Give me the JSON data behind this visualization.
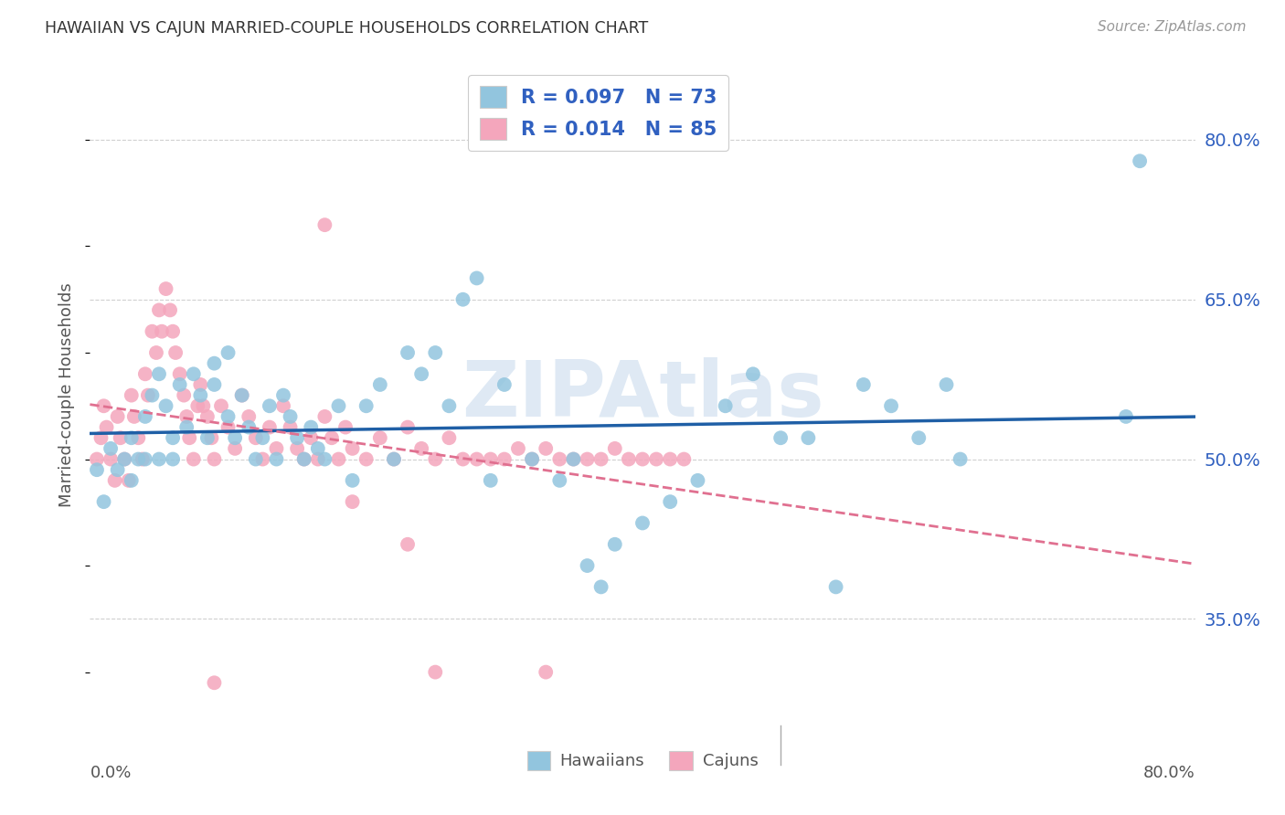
{
  "title": "HAWAIIAN VS CAJUN MARRIED-COUPLE HOUSEHOLDS CORRELATION CHART",
  "source": "Source: ZipAtlas.com",
  "ylabel": "Married-couple Households",
  "ytick_labels": [
    "80.0%",
    "65.0%",
    "50.0%",
    "35.0%"
  ],
  "ytick_values": [
    0.8,
    0.65,
    0.5,
    0.35
  ],
  "xlim": [
    0.0,
    0.8
  ],
  "ylim": [
    0.25,
    0.87
  ],
  "hawaiian_color": "#92c5de",
  "cajun_color": "#f4a6bc",
  "hawaiian_line_color": "#1f5fa6",
  "cajun_line_color": "#e07090",
  "legend_text_color": "#3060c0",
  "R_hawaiian": "0.097",
  "N_hawaiian": "73",
  "R_cajun": "0.014",
  "N_cajun": "85",
  "watermark": "ZIPAtlas",
  "background_color": "#ffffff",
  "grid_color": "#d0d0d0",
  "hawaiian_x": [
    0.005,
    0.01,
    0.015,
    0.02,
    0.025,
    0.03,
    0.03,
    0.035,
    0.04,
    0.04,
    0.045,
    0.05,
    0.05,
    0.055,
    0.06,
    0.06,
    0.065,
    0.07,
    0.075,
    0.08,
    0.085,
    0.09,
    0.09,
    0.1,
    0.1,
    0.105,
    0.11,
    0.115,
    0.12,
    0.125,
    0.13,
    0.135,
    0.14,
    0.145,
    0.15,
    0.155,
    0.16,
    0.165,
    0.17,
    0.18,
    0.19,
    0.2,
    0.21,
    0.22,
    0.23,
    0.24,
    0.25,
    0.26,
    0.27,
    0.28,
    0.29,
    0.3,
    0.32,
    0.34,
    0.35,
    0.36,
    0.37,
    0.38,
    0.4,
    0.42,
    0.44,
    0.46,
    0.48,
    0.5,
    0.52,
    0.54,
    0.56,
    0.58,
    0.6,
    0.62,
    0.63,
    0.75,
    0.76
  ],
  "hawaiian_y": [
    0.49,
    0.46,
    0.51,
    0.49,
    0.5,
    0.52,
    0.48,
    0.5,
    0.54,
    0.5,
    0.56,
    0.58,
    0.5,
    0.55,
    0.52,
    0.5,
    0.57,
    0.53,
    0.58,
    0.56,
    0.52,
    0.59,
    0.57,
    0.6,
    0.54,
    0.52,
    0.56,
    0.53,
    0.5,
    0.52,
    0.55,
    0.5,
    0.56,
    0.54,
    0.52,
    0.5,
    0.53,
    0.51,
    0.5,
    0.55,
    0.48,
    0.55,
    0.57,
    0.5,
    0.6,
    0.58,
    0.6,
    0.55,
    0.65,
    0.67,
    0.48,
    0.57,
    0.5,
    0.48,
    0.5,
    0.4,
    0.38,
    0.42,
    0.44,
    0.46,
    0.48,
    0.55,
    0.58,
    0.52,
    0.52,
    0.38,
    0.57,
    0.55,
    0.52,
    0.57,
    0.5,
    0.54,
    0.78
  ],
  "cajun_x": [
    0.005,
    0.008,
    0.01,
    0.012,
    0.015,
    0.018,
    0.02,
    0.022,
    0.025,
    0.028,
    0.03,
    0.032,
    0.035,
    0.038,
    0.04,
    0.042,
    0.045,
    0.048,
    0.05,
    0.052,
    0.055,
    0.058,
    0.06,
    0.062,
    0.065,
    0.068,
    0.07,
    0.072,
    0.075,
    0.078,
    0.08,
    0.082,
    0.085,
    0.088,
    0.09,
    0.095,
    0.1,
    0.105,
    0.11,
    0.115,
    0.12,
    0.125,
    0.13,
    0.135,
    0.14,
    0.145,
    0.15,
    0.155,
    0.16,
    0.165,
    0.17,
    0.175,
    0.18,
    0.185,
    0.19,
    0.2,
    0.21,
    0.22,
    0.23,
    0.24,
    0.25,
    0.26,
    0.27,
    0.28,
    0.29,
    0.3,
    0.31,
    0.32,
    0.33,
    0.34,
    0.35,
    0.36,
    0.37,
    0.38,
    0.39,
    0.4,
    0.41,
    0.42,
    0.43,
    0.17,
    0.19,
    0.23,
    0.25,
    0.33,
    0.09
  ],
  "cajun_y": [
    0.5,
    0.52,
    0.55,
    0.53,
    0.5,
    0.48,
    0.54,
    0.52,
    0.5,
    0.48,
    0.56,
    0.54,
    0.52,
    0.5,
    0.58,
    0.56,
    0.62,
    0.6,
    0.64,
    0.62,
    0.66,
    0.64,
    0.62,
    0.6,
    0.58,
    0.56,
    0.54,
    0.52,
    0.5,
    0.55,
    0.57,
    0.55,
    0.54,
    0.52,
    0.5,
    0.55,
    0.53,
    0.51,
    0.56,
    0.54,
    0.52,
    0.5,
    0.53,
    0.51,
    0.55,
    0.53,
    0.51,
    0.5,
    0.52,
    0.5,
    0.54,
    0.52,
    0.5,
    0.53,
    0.51,
    0.5,
    0.52,
    0.5,
    0.53,
    0.51,
    0.5,
    0.52,
    0.5,
    0.5,
    0.5,
    0.5,
    0.51,
    0.5,
    0.51,
    0.5,
    0.5,
    0.5,
    0.5,
    0.51,
    0.5,
    0.5,
    0.5,
    0.5,
    0.5,
    0.72,
    0.46,
    0.42,
    0.3,
    0.3,
    0.29
  ]
}
